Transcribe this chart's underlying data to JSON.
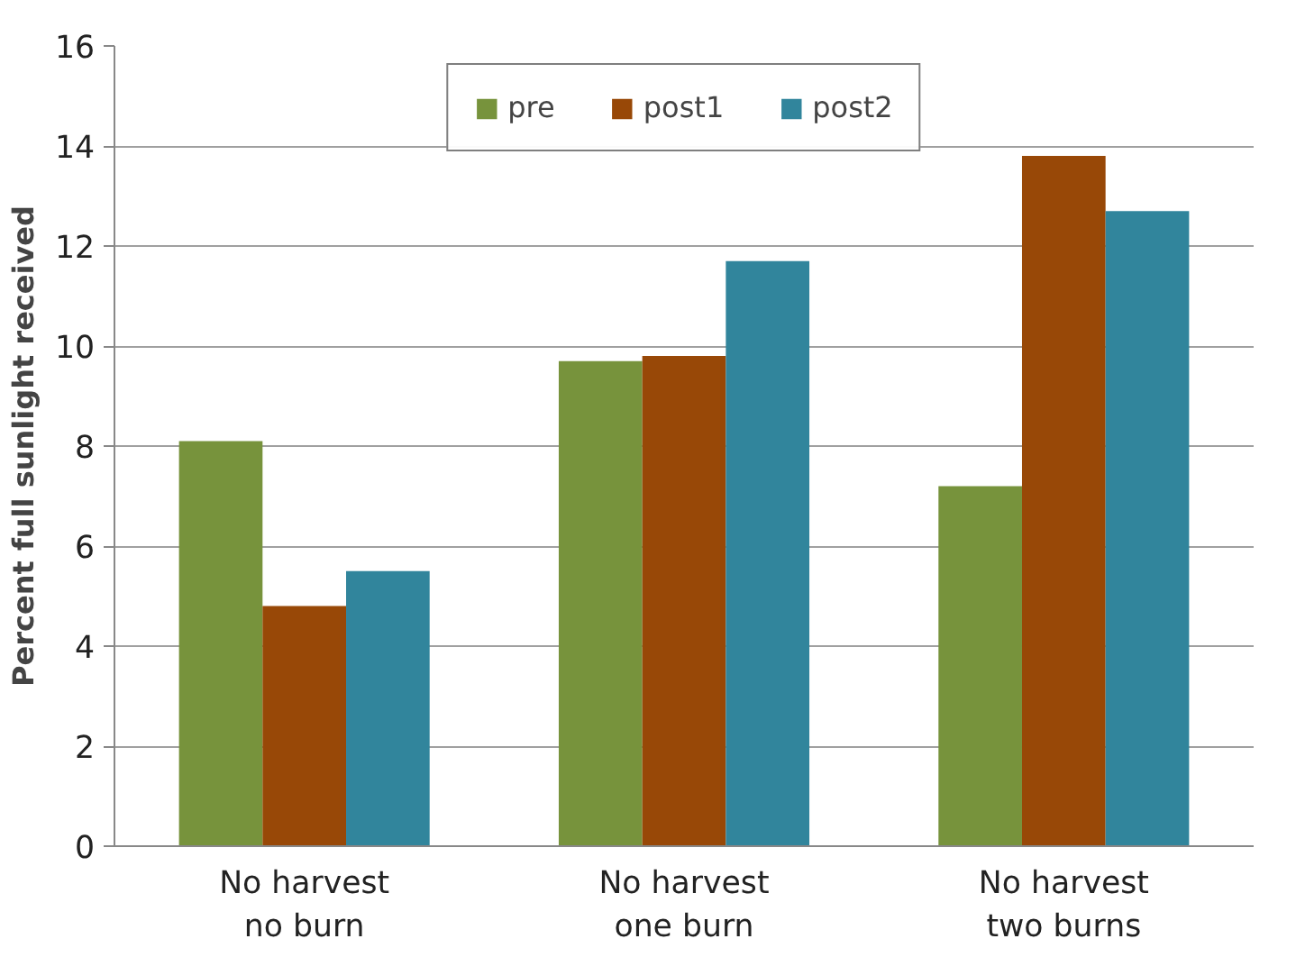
{
  "chart_data": {
    "type": "bar",
    "ylabel": "Percent full sunlight received",
    "categories": [
      "No harvest\nno burn",
      "No harvest\none burn",
      "No harvest\ntwo burns"
    ],
    "series": [
      {
        "name": "pre",
        "color": "#77933c",
        "values": [
          8.1,
          9.7,
          7.2
        ]
      },
      {
        "name": "post1",
        "color": "#984807",
        "values": [
          4.8,
          9.8,
          13.8
        ]
      },
      {
        "name": "post2",
        "color": "#31859c",
        "values": [
          5.5,
          11.7,
          12.7
        ]
      }
    ],
    "ylim": [
      0,
      16
    ],
    "yticks": [
      0,
      2,
      4,
      6,
      8,
      10,
      12,
      14,
      16
    ],
    "grid": "y",
    "legend": "top"
  }
}
